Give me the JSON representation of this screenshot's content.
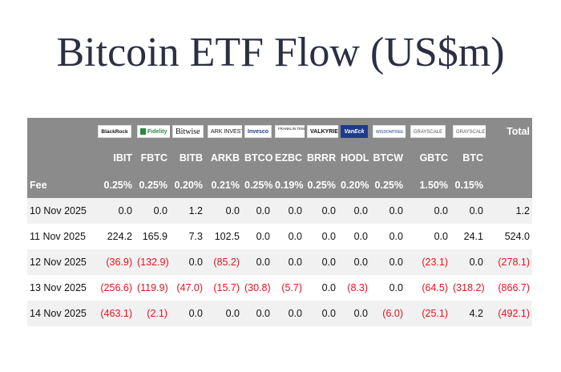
{
  "title": "Bitcoin ETF Flow (US$m)",
  "issuers": [
    {
      "key": "blackrock",
      "logo_text": "BlackRock"
    },
    {
      "key": "fidelity",
      "logo_text": "Fidelity"
    },
    {
      "key": "bitwise",
      "logo_text": "Bitwise"
    },
    {
      "key": "ark",
      "logo_text": "ARK INVEST"
    },
    {
      "key": "invesco",
      "logo_text": "Invesco"
    },
    {
      "key": "franklin",
      "logo_text": "FRANKLIN TEMPLETON"
    },
    {
      "key": "valkyrie",
      "logo_text": "VALKYRIE"
    },
    {
      "key": "vaneck",
      "logo_text": "VanEck"
    },
    {
      "key": "wisdomtree",
      "logo_text": "WISDOMTREE"
    },
    {
      "key": "grayscale1",
      "logo_text": "GRAYSCALE"
    },
    {
      "key": "grayscale2",
      "logo_text": "GRAYSCALE"
    }
  ],
  "total_label": "Total",
  "tickers": [
    "IBIT",
    "FBTC",
    "BITB",
    "ARKB",
    "BTCO",
    "EZBC",
    "BRRR",
    "HODL",
    "BTCW",
    "GBTC",
    "BTC"
  ],
  "fee_label": "Fee",
  "fees": [
    "0.25%",
    "0.25%",
    "0.20%",
    "0.21%",
    "0.25%",
    "0.19%",
    "0.25%",
    "0.20%",
    "0.25%",
    "1.50%",
    "0.15%"
  ],
  "rows": [
    {
      "date": "10 Nov 2025",
      "values": [
        "0.0",
        "0.0",
        "1.2",
        "0.0",
        "0.0",
        "0.0",
        "0.0",
        "0.0",
        "0.0",
        "0.0",
        "0.0"
      ],
      "total": "1.2"
    },
    {
      "date": "11 Nov 2025",
      "values": [
        "224.2",
        "165.9",
        "7.3",
        "102.5",
        "0.0",
        "0.0",
        "0.0",
        "0.0",
        "0.0",
        "0.0",
        "24.1"
      ],
      "total": "524.0"
    },
    {
      "date": "12 Nov 2025",
      "values": [
        "(36.9)",
        "(132.9)",
        "0.0",
        "(85.2)",
        "0.0",
        "0.0",
        "0.0",
        "0.0",
        "0.0",
        "(23.1)",
        "0.0"
      ],
      "total": "(278.1)"
    },
    {
      "date": "13 Nov 2025",
      "values": [
        "(256.6)",
        "(119.9)",
        "(47.0)",
        "(15.7)",
        "(30.8)",
        "(5.7)",
        "0.0",
        "(8.3)",
        "0.0",
        "(64.5)",
        "(318.2)"
      ],
      "total": "(866.7)"
    },
    {
      "date": "14 Nov 2025",
      "values": [
        "(463.1)",
        "(2.1)",
        "0.0",
        "0.0",
        "0.0",
        "0.0",
        "0.0",
        "0.0",
        "(6.0)",
        "(25.1)",
        "4.2"
      ],
      "total": "(492.1)"
    }
  ],
  "colors": {
    "header_bg": "#8b8b8b",
    "negative": "#e0141e",
    "title": "#2b3042",
    "alt_row": "#f1f1f1"
  }
}
